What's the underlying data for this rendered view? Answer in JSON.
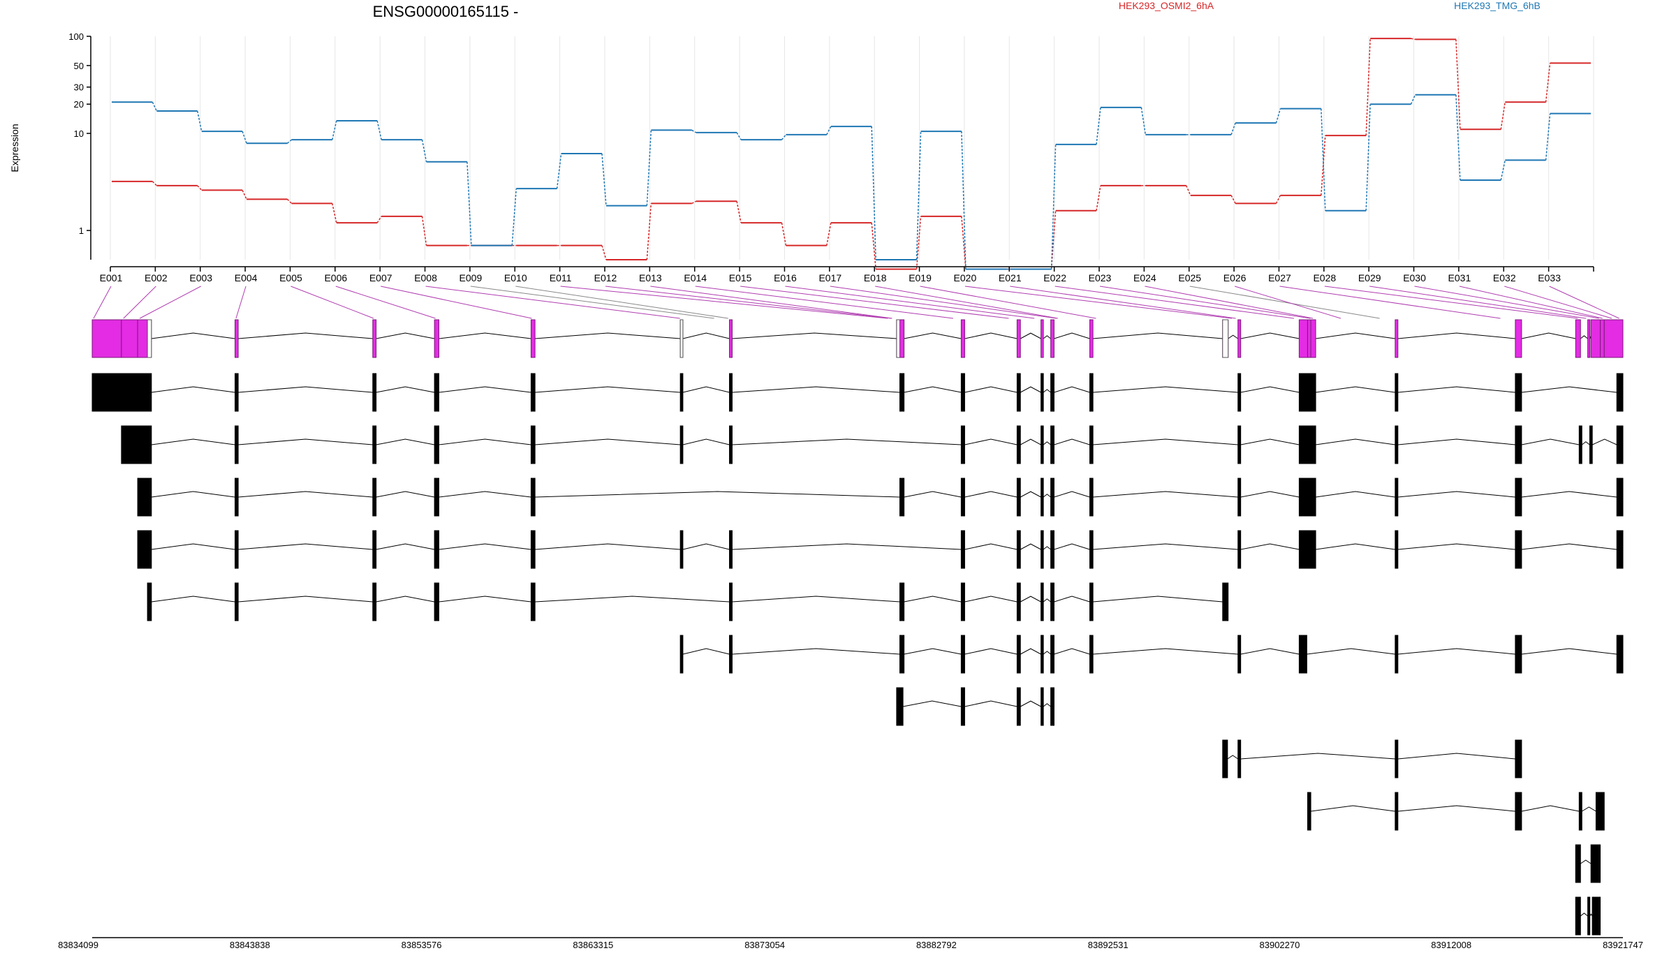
{
  "chart_data": {
    "type": "line",
    "title": "ENSG00000165115 -",
    "ylabel": "Expression",
    "yscale": "log",
    "ylim": [
      0.5,
      100
    ],
    "yticks": [
      1,
      10,
      20,
      30,
      50,
      100
    ],
    "grid": "vertical",
    "legend_placement": "top",
    "categories": [
      "E001",
      "E002",
      "E003",
      "E004",
      "E005",
      "E006",
      "E007",
      "E008",
      "E009",
      "E010",
      "E011",
      "E012",
      "E013",
      "E014",
      "E015",
      "E016",
      "E017",
      "E018",
      "E019",
      "E020",
      "E021",
      "E022",
      "E023",
      "E024",
      "E025",
      "E026",
      "E027",
      "E028",
      "E029",
      "E030",
      "E031",
      "E032",
      "E033"
    ],
    "series": [
      {
        "name": "HEK293_OSMI2_6hA",
        "color": "#d62728",
        "values": [
          3.2,
          2.9,
          2.6,
          2.1,
          1.9,
          1.2,
          1.4,
          0.7,
          0.7,
          0.7,
          0.7,
          0.5,
          1.9,
          2.0,
          1.2,
          0.7,
          1.2,
          0.4,
          1.4,
          0.4,
          0.4,
          1.6,
          2.9,
          2.9,
          2.3,
          1.9,
          2.3,
          9.5,
          95,
          93,
          11,
          21,
          53
        ]
      },
      {
        "name": "HEK293_TMG_6hB",
        "color": "#1f77b4",
        "values": [
          21,
          17,
          10.5,
          7.9,
          8.6,
          13.5,
          8.6,
          5.1,
          0.7,
          2.7,
          6.2,
          1.8,
          10.8,
          10.2,
          8.6,
          9.7,
          11.8,
          0.5,
          10.5,
          0.4,
          0.4,
          7.7,
          18.5,
          9.7,
          9.7,
          12.8,
          18,
          1.6,
          20,
          25,
          3.3,
          5.3,
          16
        ]
      }
    ],
    "coordinates": {
      "ticks": [
        "83834099",
        "83843838",
        "83853576",
        "83863315",
        "83873054",
        "83882792",
        "83892531",
        "83902270",
        "83912008",
        "83921747"
      ],
      "start": 83834099,
      "end": 83921747
    },
    "exon_positions": [
      0.0,
      0.01955,
      0.03016,
      0.09305,
      0.18296,
      0.22337,
      0.28629,
      0.38309,
      0.40541,
      0.41463,
      0.51883,
      0.52141,
      0.52163,
      0.56158,
      0.59786,
      0.61463,
      0.62914,
      0.62995,
      0.65487,
      0.74359,
      0.74615,
      0.78419,
      0.79487,
      0.79658,
      0.84018,
      0.81474,
      0.91905,
      0.96957,
      0.97506,
      0.98346,
      0.98575,
      0.99176,
      0.99663
    ],
    "transcripts": [
      {
        "exons": [
          [
            0.0,
            0.0387
          ],
          [
            0.0933,
            0.0954
          ],
          [
            0.1833,
            0.1855
          ],
          [
            0.2236,
            0.2265
          ],
          [
            0.2867,
            0.2893
          ],
          [
            0.3842,
            0.3859
          ],
          [
            0.4163,
            0.4181
          ],
          [
            0.5276,
            0.5304
          ],
          [
            0.5677,
            0.57
          ],
          [
            0.6042,
            0.6064
          ],
          [
            0.6198,
            0.6214
          ],
          [
            0.6262,
            0.6284
          ],
          [
            0.6517,
            0.6538
          ],
          [
            0.7485,
            0.7503
          ],
          [
            0.7885,
            0.7993
          ],
          [
            0.8512,
            0.853
          ],
          [
            0.9297,
            0.9338
          ],
          [
            0.996,
            1.0
          ]
        ]
      },
      {
        "exons": [
          [
            0.0191,
            0.0387
          ],
          [
            0.0933,
            0.0954
          ],
          [
            0.1833,
            0.1855
          ],
          [
            0.2236,
            0.2265
          ],
          [
            0.2867,
            0.2893
          ],
          [
            0.3842,
            0.3859
          ],
          [
            0.4163,
            0.4181
          ],
          [
            0.5677,
            0.57
          ],
          [
            0.6042,
            0.6064
          ],
          [
            0.6198,
            0.6214
          ],
          [
            0.6262,
            0.6284
          ],
          [
            0.6517,
            0.6538
          ],
          [
            0.7485,
            0.7503
          ],
          [
            0.7885,
            0.7993
          ],
          [
            0.8512,
            0.853
          ],
          [
            0.9297,
            0.9338
          ],
          [
            0.9714,
            0.9732
          ],
          [
            0.9783,
            0.98
          ],
          [
            0.996,
            1.0
          ]
        ]
      },
      {
        "exons": [
          [
            0.0297,
            0.0387
          ],
          [
            0.0933,
            0.0954
          ],
          [
            0.1833,
            0.1855
          ],
          [
            0.2236,
            0.2265
          ],
          [
            0.2867,
            0.2893
          ],
          [
            0.5276,
            0.5304
          ],
          [
            0.5677,
            0.57
          ],
          [
            0.6042,
            0.6064
          ],
          [
            0.6198,
            0.6214
          ],
          [
            0.6262,
            0.6284
          ],
          [
            0.6517,
            0.6538
          ],
          [
            0.7485,
            0.7503
          ],
          [
            0.7885,
            0.7993
          ],
          [
            0.8512,
            0.853
          ],
          [
            0.9297,
            0.9338
          ],
          [
            0.996,
            1.0
          ]
        ]
      },
      {
        "exons": [
          [
            0.0297,
            0.0387
          ],
          [
            0.0933,
            0.0954
          ],
          [
            0.1833,
            0.1855
          ],
          [
            0.2236,
            0.2265
          ],
          [
            0.2867,
            0.2893
          ],
          [
            0.3842,
            0.3859
          ],
          [
            0.4163,
            0.4181
          ],
          [
            0.5677,
            0.57
          ],
          [
            0.6042,
            0.6064
          ],
          [
            0.6198,
            0.6214
          ],
          [
            0.6262,
            0.6284
          ],
          [
            0.6517,
            0.6538
          ],
          [
            0.7485,
            0.7503
          ],
          [
            0.7885,
            0.7993
          ],
          [
            0.8512,
            0.853
          ],
          [
            0.9297,
            0.9338
          ],
          [
            0.996,
            1.0
          ]
        ]
      },
      {
        "exons": [
          [
            0.0361,
            0.0387
          ],
          [
            0.0933,
            0.0954
          ],
          [
            0.1833,
            0.1855
          ],
          [
            0.2236,
            0.2265
          ],
          [
            0.2867,
            0.2893
          ],
          [
            0.4163,
            0.4181
          ],
          [
            0.5276,
            0.5304
          ],
          [
            0.5677,
            0.57
          ],
          [
            0.6042,
            0.6064
          ],
          [
            0.6198,
            0.6214
          ],
          [
            0.6262,
            0.6284
          ],
          [
            0.6517,
            0.6538
          ],
          [
            0.7385,
            0.7421
          ]
        ]
      },
      {
        "exons": [
          [
            0.3842,
            0.3859
          ],
          [
            0.4163,
            0.4181
          ],
          [
            0.5276,
            0.5304
          ],
          [
            0.5677,
            0.57
          ],
          [
            0.6042,
            0.6064
          ],
          [
            0.6198,
            0.6214
          ],
          [
            0.6262,
            0.6284
          ],
          [
            0.6517,
            0.6538
          ],
          [
            0.7485,
            0.7503
          ],
          [
            0.7885,
            0.7935
          ],
          [
            0.8512,
            0.853
          ],
          [
            0.9297,
            0.9338
          ],
          [
            0.996,
            1.0
          ]
        ]
      },
      {
        "exons": [
          [
            0.5255,
            0.5297
          ],
          [
            0.5677,
            0.57
          ],
          [
            0.6042,
            0.6064
          ],
          [
            0.6198,
            0.6214
          ],
          [
            0.6262,
            0.6284
          ]
        ]
      },
      {
        "exons": [
          [
            0.7385,
            0.7417
          ],
          [
            0.7485,
            0.7503
          ],
          [
            0.8512,
            0.853
          ],
          [
            0.9297,
            0.9338
          ]
        ]
      },
      {
        "exons": [
          [
            0.794,
            0.7961
          ],
          [
            0.8512,
            0.853
          ],
          [
            0.9297,
            0.9338
          ],
          [
            0.9714,
            0.9732
          ],
          [
            0.9824,
            0.9878
          ]
        ]
      },
      {
        "exons": [
          [
            0.9691,
            0.9723
          ],
          [
            0.9791,
            0.9852
          ]
        ]
      },
      {
        "exons": [
          [
            0.9691,
            0.9723
          ],
          [
            0.977,
            0.9784
          ],
          [
            0.98,
            0.9852
          ]
        ]
      }
    ]
  }
}
